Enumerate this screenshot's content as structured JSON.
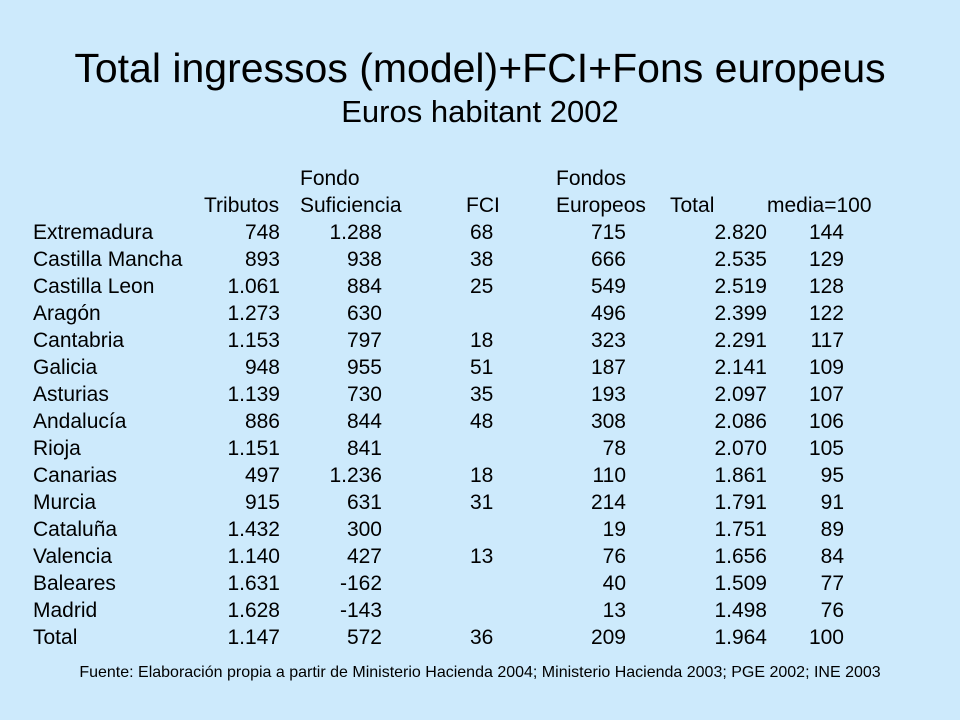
{
  "title": "Total ingressos (model)+FCI+Fons europeus",
  "subtitle": "Euros habitant 2002",
  "headers": {
    "tributos": [
      "",
      "Tributos"
    ],
    "fondo": [
      "Fondo",
      "Suficiencia"
    ],
    "fci": [
      "",
      "FCI"
    ],
    "fondos": [
      "Fondos",
      "Europeos"
    ],
    "total": [
      "",
      "Total"
    ],
    "media": [
      "",
      "media=100"
    ]
  },
  "rows": [
    {
      "region": "Extremadura",
      "tributos": "748",
      "fondo": "1.288",
      "fci": "68",
      "fondos": "715",
      "total": "2.820",
      "media": "144"
    },
    {
      "region": "Castilla Mancha",
      "tributos": "893",
      "fondo": "938",
      "fci": "38",
      "fondos": "666",
      "total": "2.535",
      "media": "129"
    },
    {
      "region": "Castilla Leon",
      "tributos": "1.061",
      "fondo": "884",
      "fci": "25",
      "fondos": "549",
      "total": "2.519",
      "media": "128"
    },
    {
      "region": "Aragón",
      "tributos": "1.273",
      "fondo": "630",
      "fci": "",
      "fondos": "496",
      "total": "2.399",
      "media": "122"
    },
    {
      "region": "Cantabria",
      "tributos": "1.153",
      "fondo": "797",
      "fci": "18",
      "fondos": "323",
      "total": "2.291",
      "media": "117"
    },
    {
      "region": "Galicia",
      "tributos": "948",
      "fondo": "955",
      "fci": "51",
      "fondos": "187",
      "total": "2.141",
      "media": "109"
    },
    {
      "region": "Asturias",
      "tributos": "1.139",
      "fondo": "730",
      "fci": "35",
      "fondos": "193",
      "total": "2.097",
      "media": "107"
    },
    {
      "region": "Andalucía",
      "tributos": "886",
      "fondo": "844",
      "fci": "48",
      "fondos": "308",
      "total": "2.086",
      "media": "106"
    },
    {
      "region": "Rioja",
      "tributos": "1.151",
      "fondo": "841",
      "fci": "",
      "fondos": "78",
      "total": "2.070",
      "media": "105"
    },
    {
      "region": "Canarias",
      "tributos": "497",
      "fondo": "1.236",
      "fci": "18",
      "fondos": "110",
      "total": "1.861",
      "media": "95"
    },
    {
      "region": "Murcia",
      "tributos": "915",
      "fondo": "631",
      "fci": "31",
      "fondos": "214",
      "total": "1.791",
      "media": "91"
    },
    {
      "region": "Cataluña",
      "tributos": "1.432",
      "fondo": "300",
      "fci": "",
      "fondos": "19",
      "total": "1.751",
      "media": "89"
    },
    {
      "region": "Valencia",
      "tributos": "1.140",
      "fondo": "427",
      "fci": "13",
      "fondos": "76",
      "total": "1.656",
      "media": "84"
    },
    {
      "region": "Baleares",
      "tributos": "1.631",
      "fondo": "-162",
      "fci": "",
      "fondos": "40",
      "total": "1.509",
      "media": "77"
    },
    {
      "region": "Madrid",
      "tributos": "1.628",
      "fondo": "-143",
      "fci": "",
      "fondos": "13",
      "total": "1.498",
      "media": "76"
    },
    {
      "region": "Total",
      "tributos": "1.147",
      "fondo": "572",
      "fci": "36",
      "fondos": "209",
      "total": "1.964",
      "media": "100"
    }
  ],
  "source": "Fuente: Elaboración propia a partir de Ministerio Hacienda 2004; Ministerio Hacienda 2003; PGE 2002; INE 2003"
}
